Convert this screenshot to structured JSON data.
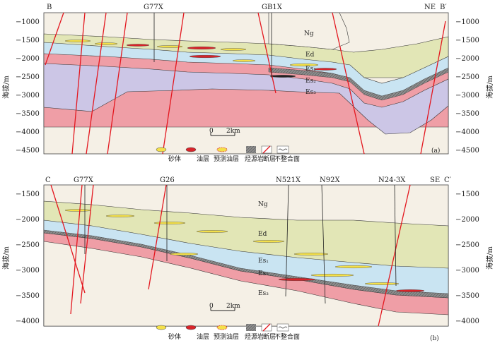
{
  "panel_a": {
    "corner_left": "B",
    "corner_right": "NE",
    "corner_right_prime": "B′",
    "wells": [
      "G77X",
      "GB1X"
    ],
    "y_axis_label": "海拔/m",
    "y_ticks": [
      "−1000",
      "−1500",
      "−2000",
      "−2500",
      "−3000",
      "−3500",
      "−4000",
      "−4500"
    ],
    "formations": {
      "ng": "Ng",
      "ed": "Ed",
      "es1": "Es₁",
      "es2": "Es₂",
      "es3": "Es₃"
    },
    "scale_label": "2km",
    "scale_zero": "0",
    "panel_label": "(a)"
  },
  "panel_b": {
    "corner_left": "C",
    "corner_right": "SE",
    "corner_right_prime": "C′",
    "wells": [
      "G77X",
      "G26",
      "N521X",
      "N92X",
      "N24-3X"
    ],
    "y_axis_label": "海拔/m",
    "y_ticks": [
      "−1500",
      "−2000",
      "−2500",
      "−3000",
      "−3500",
      "−4000"
    ],
    "formations": {
      "ng": "Ng",
      "ed": "Ed",
      "es1": "Es₁",
      "es2": "Es₂",
      "es3": "Es₃"
    },
    "scale_label": "2km",
    "scale_zero": "0",
    "panel_label": "(b)"
  },
  "legend": {
    "items": [
      "砂体",
      "油层",
      "预测油层",
      "烃源岩",
      "断层",
      "不整合面"
    ]
  },
  "colors": {
    "ng": "#f5f0e6",
    "ed": "#e2e6b6",
    "es1": "#c9e4f2",
    "es2": "#ef9ea6",
    "es3": "#ccc6e6",
    "source": "#8c8c8c",
    "fault": "#e3171f",
    "sand": "#f4e04a",
    "oil": "#d8242a"
  }
}
